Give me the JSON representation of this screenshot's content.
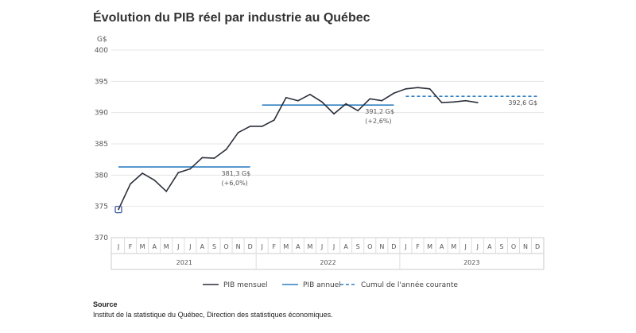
{
  "chart_data": {
    "type": "line",
    "title": "Évolution du PIB réel par industrie au Québec",
    "ylabel": "G$",
    "ylim": [
      370,
      400
    ],
    "yticks": [
      370,
      375,
      380,
      385,
      390,
      395,
      400
    ],
    "month_labels": [
      "J",
      "F",
      "M",
      "A",
      "M",
      "J",
      "J",
      "A",
      "S",
      "O",
      "N",
      "D"
    ],
    "years": [
      "2021",
      "2022",
      "2023"
    ],
    "grid": true,
    "legend_position": "bottom",
    "series": [
      {
        "name": "PIB mensuel",
        "color": "#2b2f3a",
        "style": "solid",
        "values": [
          374.5,
          378.6,
          380.3,
          379.2,
          377.4,
          380.4,
          381.0,
          382.8,
          382.7,
          384.1,
          386.8,
          387.8,
          387.8,
          388.8,
          392.4,
          391.9,
          392.9,
          391.7,
          389.8,
          391.4,
          390.3,
          392.2,
          391.9,
          393.1,
          393.8,
          394.0,
          393.8,
          391.6,
          391.7,
          391.9,
          391.6
        ]
      },
      {
        "name": "PIB annuel",
        "color": "#2f7fc1",
        "style": "solid",
        "segments": [
          {
            "year": "2021",
            "value": 381.3,
            "label": "381,3 G$",
            "change": "(+6,0%)"
          },
          {
            "year": "2022",
            "value": 391.2,
            "label": "391,2 G$",
            "change": "(+2,6%)"
          }
        ]
      },
      {
        "name": "Cumul de l'année courante",
        "color": "#2f7fc1",
        "style": "dashed",
        "segments": [
          {
            "year": "2023",
            "value": 392.6,
            "label": "392,6 G$"
          }
        ]
      }
    ]
  },
  "source": {
    "heading": "Source",
    "text": "Institut de la statistique du Québec, Direction des statistiques économiques."
  }
}
